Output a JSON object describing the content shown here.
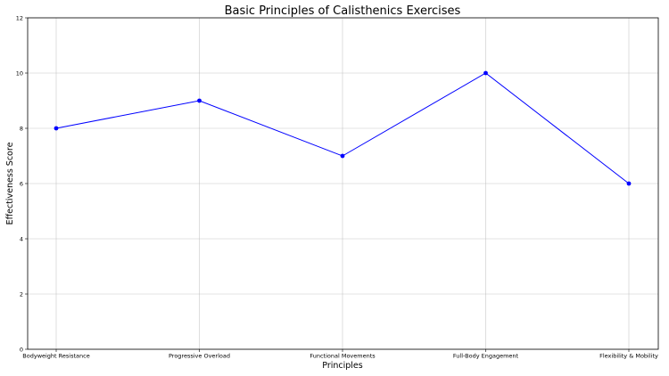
{
  "chart_data": {
    "type": "line",
    "title": "Basic Principles of Calisthenics Exercises",
    "xlabel": "Principles",
    "ylabel": "Effectiveness Score",
    "categories": [
      "Bodyweight Resistance",
      "Progressive Overload",
      "Functional Movements",
      "Full-Body Engagement",
      "Flexibility & Mobility"
    ],
    "series": [
      {
        "name": "Effectiveness Score",
        "values": [
          8,
          9,
          7,
          10,
          6
        ],
        "color": "#0000ff",
        "marker": "circle"
      }
    ],
    "ylim": [
      0,
      12
    ],
    "yticks": [
      0,
      2,
      4,
      6,
      8,
      10,
      12
    ],
    "grid": true,
    "legend": null
  }
}
